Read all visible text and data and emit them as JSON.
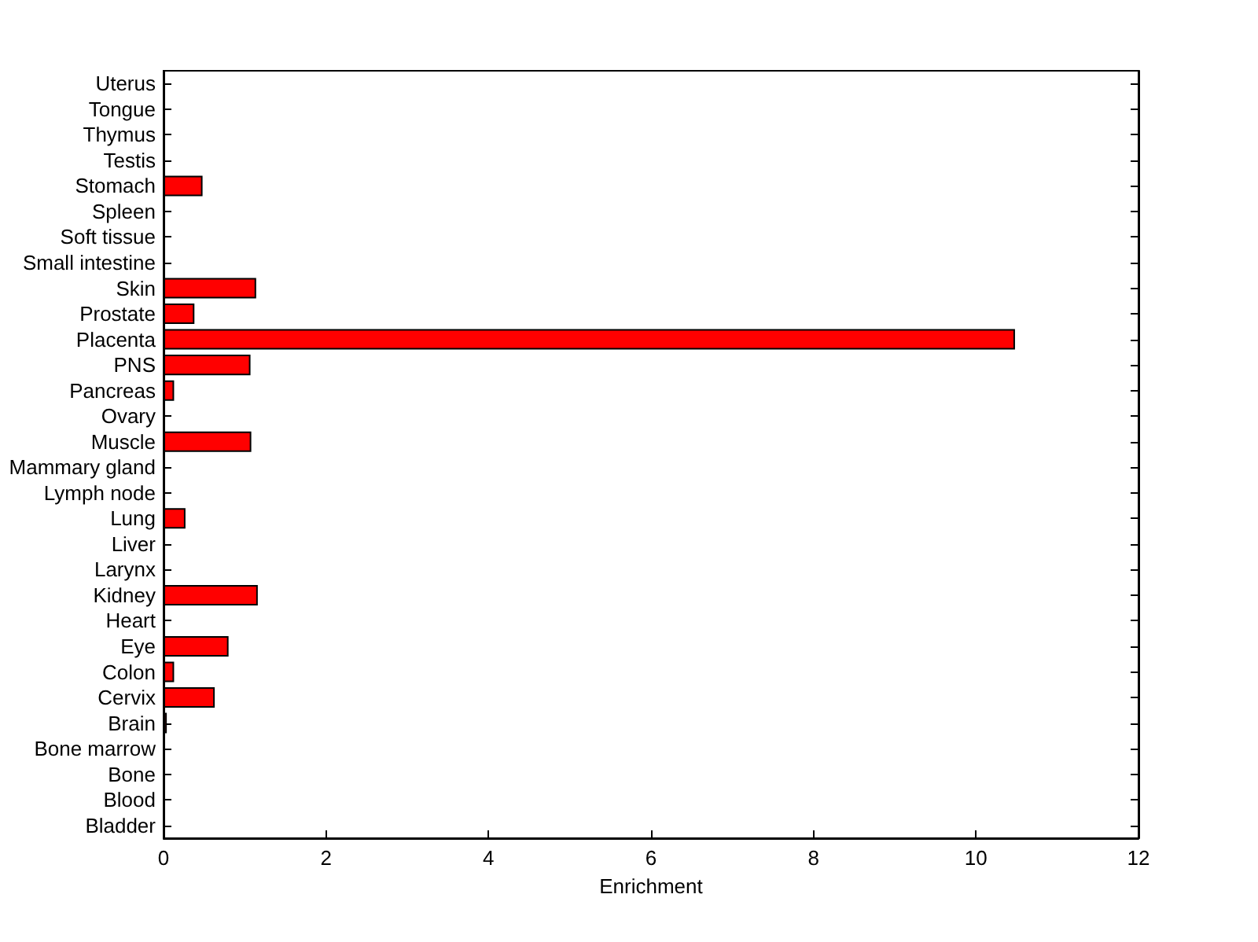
{
  "chart_data": {
    "type": "bar",
    "orientation": "horizontal",
    "xlabel": "Enrichment",
    "categories": [
      "Uterus",
      "Tongue",
      "Thymus",
      "Testis",
      "Stomach",
      "Spleen",
      "Soft tissue",
      "Small intestine",
      "Skin",
      "Prostate",
      "Placenta",
      "PNS",
      "Pancreas",
      "Ovary",
      "Muscle",
      "Mammary gland",
      "Lymph node",
      "Lung",
      "Liver",
      "Larynx",
      "Kidney",
      "Heart",
      "Eye",
      "Colon",
      "Cervix",
      "Brain",
      "Bone marrow",
      "Bone",
      "Blood",
      "Bladder"
    ],
    "values": [
      0,
      0,
      0,
      0,
      0.48,
      0,
      0,
      0,
      1.14,
      0.38,
      10.48,
      1.07,
      0.13,
      0,
      1.08,
      0,
      0,
      0.27,
      0,
      0,
      1.16,
      0,
      0.8,
      0.13,
      0.63,
      0.04,
      0,
      0,
      0,
      0
    ],
    "color": "#ff0000",
    "xlim": [
      0,
      12
    ],
    "xticks": [
      0,
      2,
      4,
      6,
      8,
      10,
      12
    ],
    "grid": false
  }
}
